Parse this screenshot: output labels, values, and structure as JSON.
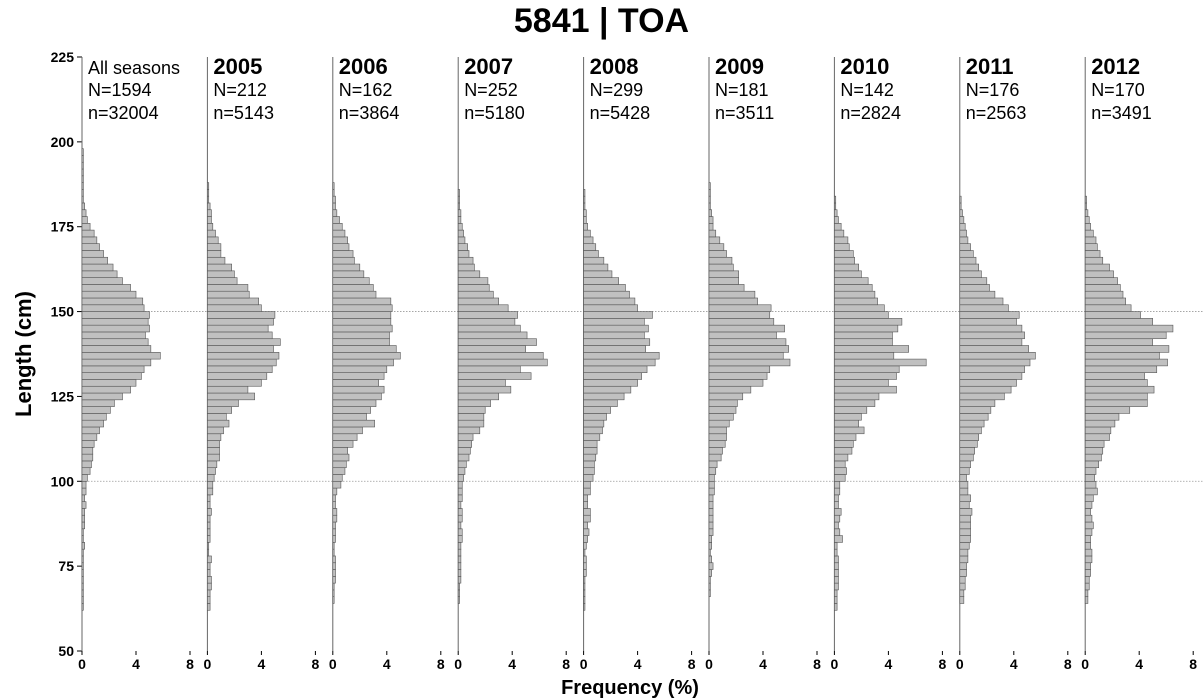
{
  "title": "5841 | TOA",
  "xlabel": "Frequency (%)",
  "ylabel": "Length (cm)",
  "colors": {
    "bar_fill": "#c0c0c0",
    "bar_stroke": "#555555",
    "ref_line": "#9a9a9a",
    "axis": "#000000"
  },
  "chart_data": {
    "type": "bar",
    "orientation": "horizontal",
    "ylim": [
      50,
      225
    ],
    "xlim": [
      0,
      8
    ],
    "y_ticks": [
      50,
      75,
      100,
      125,
      150,
      175,
      200,
      225
    ],
    "x_ticks": [
      0,
      4,
      8
    ],
    "bin_width_cm": 2,
    "bin_starts": [
      50,
      52,
      54,
      56,
      58,
      60,
      62,
      64,
      66,
      68,
      70,
      72,
      74,
      76,
      78,
      80,
      82,
      84,
      86,
      88,
      90,
      92,
      94,
      96,
      98,
      100,
      102,
      104,
      106,
      108,
      110,
      112,
      114,
      116,
      118,
      120,
      122,
      124,
      126,
      128,
      130,
      132,
      134,
      136,
      138,
      140,
      142,
      144,
      146,
      148,
      150,
      152,
      154,
      156,
      158,
      160,
      162,
      164,
      166,
      168,
      170,
      172,
      174,
      176,
      178,
      180,
      182,
      184,
      186,
      188,
      190,
      192,
      194,
      196,
      198
    ],
    "reference_lines": [
      100,
      150
    ],
    "panels": [
      {
        "name": "All seasons",
        "label_bold": false,
        "N": "N=1594",
        "n": "n=32004",
        "values": [
          0,
          0,
          0,
          0,
          0,
          0,
          0.1,
          0.1,
          0.1,
          0.1,
          0.1,
          0.1,
          0.1,
          0.1,
          0.1,
          0.2,
          0.1,
          0.1,
          0.2,
          0.2,
          0.2,
          0.3,
          0.2,
          0.3,
          0.3,
          0.4,
          0.6,
          0.7,
          0.8,
          0.8,
          0.9,
          1.1,
          1.3,
          1.6,
          1.8,
          2.1,
          2.4,
          3.0,
          3.6,
          4.0,
          4.4,
          4.6,
          5.1,
          5.8,
          5.1,
          4.9,
          4.7,
          5.0,
          4.9,
          5.0,
          4.6,
          4.5,
          4.0,
          3.6,
          3.0,
          2.6,
          2.3,
          1.9,
          1.6,
          1.3,
          1.1,
          0.9,
          0.6,
          0.4,
          0.3,
          0.2,
          0.1,
          0.1,
          0.1,
          0.1,
          0.1,
          0.1,
          0.1,
          0.1,
          0
        ]
      },
      {
        "name": "2005",
        "label_bold": true,
        "N": "N=212",
        "n": "n=5143",
        "values": [
          0,
          0,
          0,
          0,
          0,
          0,
          0.2,
          0.2,
          0.2,
          0.3,
          0.3,
          0.2,
          0.2,
          0.3,
          0.1,
          0.1,
          0.2,
          0.2,
          0.2,
          0.2,
          0.3,
          0.2,
          0.2,
          0.4,
          0.4,
          0.5,
          0.6,
          0.7,
          0.9,
          0.9,
          0.9,
          1.0,
          1.2,
          1.6,
          1.4,
          1.8,
          2.3,
          3.5,
          3.0,
          4.0,
          4.4,
          4.8,
          5.1,
          5.3,
          4.9,
          5.4,
          4.8,
          4.5,
          4.9,
          5.0,
          4.0,
          3.8,
          3.1,
          3.0,
          2.2,
          2.0,
          1.8,
          1.3,
          1.0,
          1.0,
          0.8,
          0.6,
          0.4,
          0.3,
          0.3,
          0.2,
          0.1,
          0.1,
          0.1,
          0,
          0,
          0,
          0,
          0,
          0
        ]
      },
      {
        "name": "2006",
        "label_bold": true,
        "N": "N=162",
        "n": "n=3864",
        "values": [
          0,
          0,
          0,
          0,
          0,
          0,
          0,
          0.1,
          0.1,
          0.1,
          0.2,
          0.2,
          0.2,
          0.2,
          0.1,
          0.1,
          0.2,
          0.2,
          0.2,
          0.3,
          0.3,
          0.2,
          0.2,
          0.3,
          0.6,
          0.7,
          0.9,
          1.0,
          1.2,
          1.1,
          1.5,
          1.8,
          2.2,
          3.1,
          2.5,
          2.8,
          3.2,
          3.6,
          3.8,
          3.4,
          3.8,
          4.0,
          4.5,
          5.0,
          4.7,
          4.2,
          4.2,
          4.4,
          4.3,
          4.3,
          4.4,
          4.3,
          3.2,
          3.0,
          2.7,
          2.3,
          2.0,
          1.6,
          1.5,
          1.2,
          1.1,
          0.9,
          0.7,
          0.5,
          0.3,
          0.2,
          0.2,
          0.1,
          0.1,
          0,
          0,
          0,
          0,
          0,
          0
        ]
      },
      {
        "name": "2007",
        "label_bold": true,
        "N": "N=252",
        "n": "n=5180",
        "values": [
          0,
          0,
          0,
          0,
          0,
          0,
          0,
          0.1,
          0.1,
          0.1,
          0.2,
          0.2,
          0.2,
          0.2,
          0.2,
          0.2,
          0.3,
          0.3,
          0.2,
          0.3,
          0.3,
          0.2,
          0.3,
          0.3,
          0.3,
          0.4,
          0.5,
          0.6,
          0.8,
          0.9,
          1.0,
          1.1,
          1.6,
          1.9,
          1.9,
          2.0,
          2.4,
          3.0,
          3.9,
          3.5,
          5.4,
          4.6,
          6.6,
          6.3,
          5.0,
          5.8,
          5.1,
          4.6,
          4.2,
          4.4,
          3.7,
          3.0,
          2.6,
          2.3,
          2.2,
          1.6,
          1.2,
          1.1,
          0.8,
          0.7,
          0.5,
          0.4,
          0.3,
          0.2,
          0.2,
          0.1,
          0.1,
          0.1,
          0,
          0,
          0,
          0,
          0,
          0,
          0
        ]
      },
      {
        "name": "2008",
        "label_bold": true,
        "N": "N=299",
        "n": "n=5428",
        "values": [
          0,
          0,
          0,
          0,
          0,
          0,
          0.1,
          0.1,
          0.1,
          0.1,
          0.1,
          0.2,
          0.2,
          0.2,
          0.1,
          0.2,
          0.3,
          0.4,
          0.3,
          0.5,
          0.5,
          0.3,
          0.3,
          0.5,
          0.5,
          0.7,
          0.8,
          0.8,
          0.9,
          1.0,
          1.0,
          1.2,
          1.4,
          1.5,
          1.7,
          2.0,
          2.5,
          3.0,
          3.5,
          4.0,
          4.3,
          4.7,
          5.3,
          5.6,
          4.6,
          4.9,
          4.5,
          4.8,
          4.5,
          5.1,
          4.0,
          3.8,
          3.4,
          3.1,
          2.6,
          2.1,
          1.8,
          1.5,
          1.1,
          0.9,
          0.7,
          0.5,
          0.3,
          0.2,
          0.2,
          0.1,
          0.1,
          0.1,
          0,
          0,
          0,
          0,
          0,
          0,
          0
        ]
      },
      {
        "name": "2009",
        "label_bold": true,
        "N": "N=181",
        "n": "n=3511",
        "values": [
          0,
          0,
          0,
          0,
          0,
          0,
          0,
          0,
          0.1,
          0.1,
          0.1,
          0.2,
          0.3,
          0.2,
          0.1,
          0.2,
          0.2,
          0.3,
          0.3,
          0.3,
          0.3,
          0.3,
          0.3,
          0.4,
          0.4,
          0.4,
          0.5,
          0.6,
          0.9,
          1.0,
          1.2,
          1.3,
          1.3,
          1.5,
          1.8,
          2.0,
          2.1,
          2.5,
          3.1,
          4.0,
          4.3,
          4.5,
          6.0,
          5.5,
          5.9,
          5.7,
          5.0,
          5.6,
          4.8,
          4.5,
          4.6,
          3.6,
          3.4,
          2.6,
          2.2,
          2.2,
          1.8,
          1.7,
          1.3,
          1.1,
          0.8,
          0.5,
          0.3,
          0.3,
          0.2,
          0.1,
          0.1,
          0.1,
          0.1,
          0,
          0,
          0,
          0,
          0,
          0
        ]
      },
      {
        "name": "2010",
        "label_bold": true,
        "N": "N=142",
        "n": "n=2824",
        "values": [
          0,
          0,
          0,
          0,
          0,
          0,
          0.2,
          0.2,
          0.2,
          0.3,
          0.3,
          0.3,
          0.3,
          0.3,
          0.2,
          0.2,
          0.6,
          0.4,
          0.3,
          0.4,
          0.5,
          0.3,
          0.3,
          0.4,
          0.4,
          0.8,
          0.9,
          0.8,
          1.0,
          1.3,
          1.4,
          1.6,
          2.2,
          1.8,
          2.0,
          2.4,
          3.0,
          3.3,
          4.6,
          4.0,
          4.6,
          4.8,
          6.8,
          4.4,
          5.5,
          4.3,
          4.3,
          4.7,
          5.0,
          4.0,
          3.7,
          3.2,
          3.0,
          2.8,
          2.5,
          2.0,
          1.8,
          1.5,
          1.4,
          1.1,
          1.0,
          0.7,
          0.5,
          0.3,
          0.2,
          0.1,
          0.1,
          0,
          0,
          0,
          0,
          0,
          0,
          0,
          0
        ]
      },
      {
        "name": "2011",
        "label_bold": true,
        "N": "N=176",
        "n": "n=2563",
        "values": [
          0,
          0,
          0,
          0,
          0,
          0,
          0,
          0.3,
          0.3,
          0.4,
          0.4,
          0.5,
          0.5,
          0.6,
          0.6,
          0.7,
          0.8,
          0.8,
          0.8,
          0.8,
          0.9,
          0.7,
          0.8,
          0.6,
          0.6,
          0.5,
          0.7,
          0.8,
          1.0,
          1.1,
          1.3,
          1.4,
          1.6,
          1.8,
          2.1,
          2.3,
          2.6,
          3.3,
          3.8,
          4.2,
          4.6,
          4.8,
          5.2,
          5.6,
          5.1,
          4.6,
          4.8,
          4.6,
          4.2,
          4.4,
          3.6,
          3.2,
          2.6,
          2.2,
          2.0,
          1.6,
          1.4,
          1.2,
          1.0,
          0.8,
          0.6,
          0.5,
          0.4,
          0.3,
          0.2,
          0.1,
          0.1,
          0,
          0,
          0,
          0,
          0,
          0,
          0,
          0
        ]
      },
      {
        "name": "2012",
        "label_bold": true,
        "N": "N=170",
        "n": "n=3491",
        "values": [
          0,
          0,
          0,
          0,
          0,
          0,
          0,
          0.2,
          0.2,
          0.3,
          0.3,
          0.4,
          0.4,
          0.5,
          0.5,
          0.4,
          0.4,
          0.5,
          0.6,
          0.5,
          0.4,
          0.5,
          0.6,
          0.9,
          0.8,
          0.7,
          0.8,
          1.0,
          1.2,
          1.3,
          1.4,
          1.8,
          1.9,
          2.2,
          2.5,
          3.3,
          4.6,
          4.6,
          5.1,
          4.6,
          4.4,
          5.3,
          6.1,
          5.5,
          6.2,
          5.0,
          6.0,
          6.5,
          5.0,
          4.1,
          3.4,
          3.0,
          2.8,
          2.6,
          2.4,
          2.1,
          1.8,
          1.3,
          1.1,
          0.9,
          0.8,
          0.6,
          0.4,
          0.3,
          0.2,
          0.1,
          0.1,
          0,
          0,
          0,
          0,
          0,
          0,
          0,
          0
        ]
      }
    ]
  }
}
